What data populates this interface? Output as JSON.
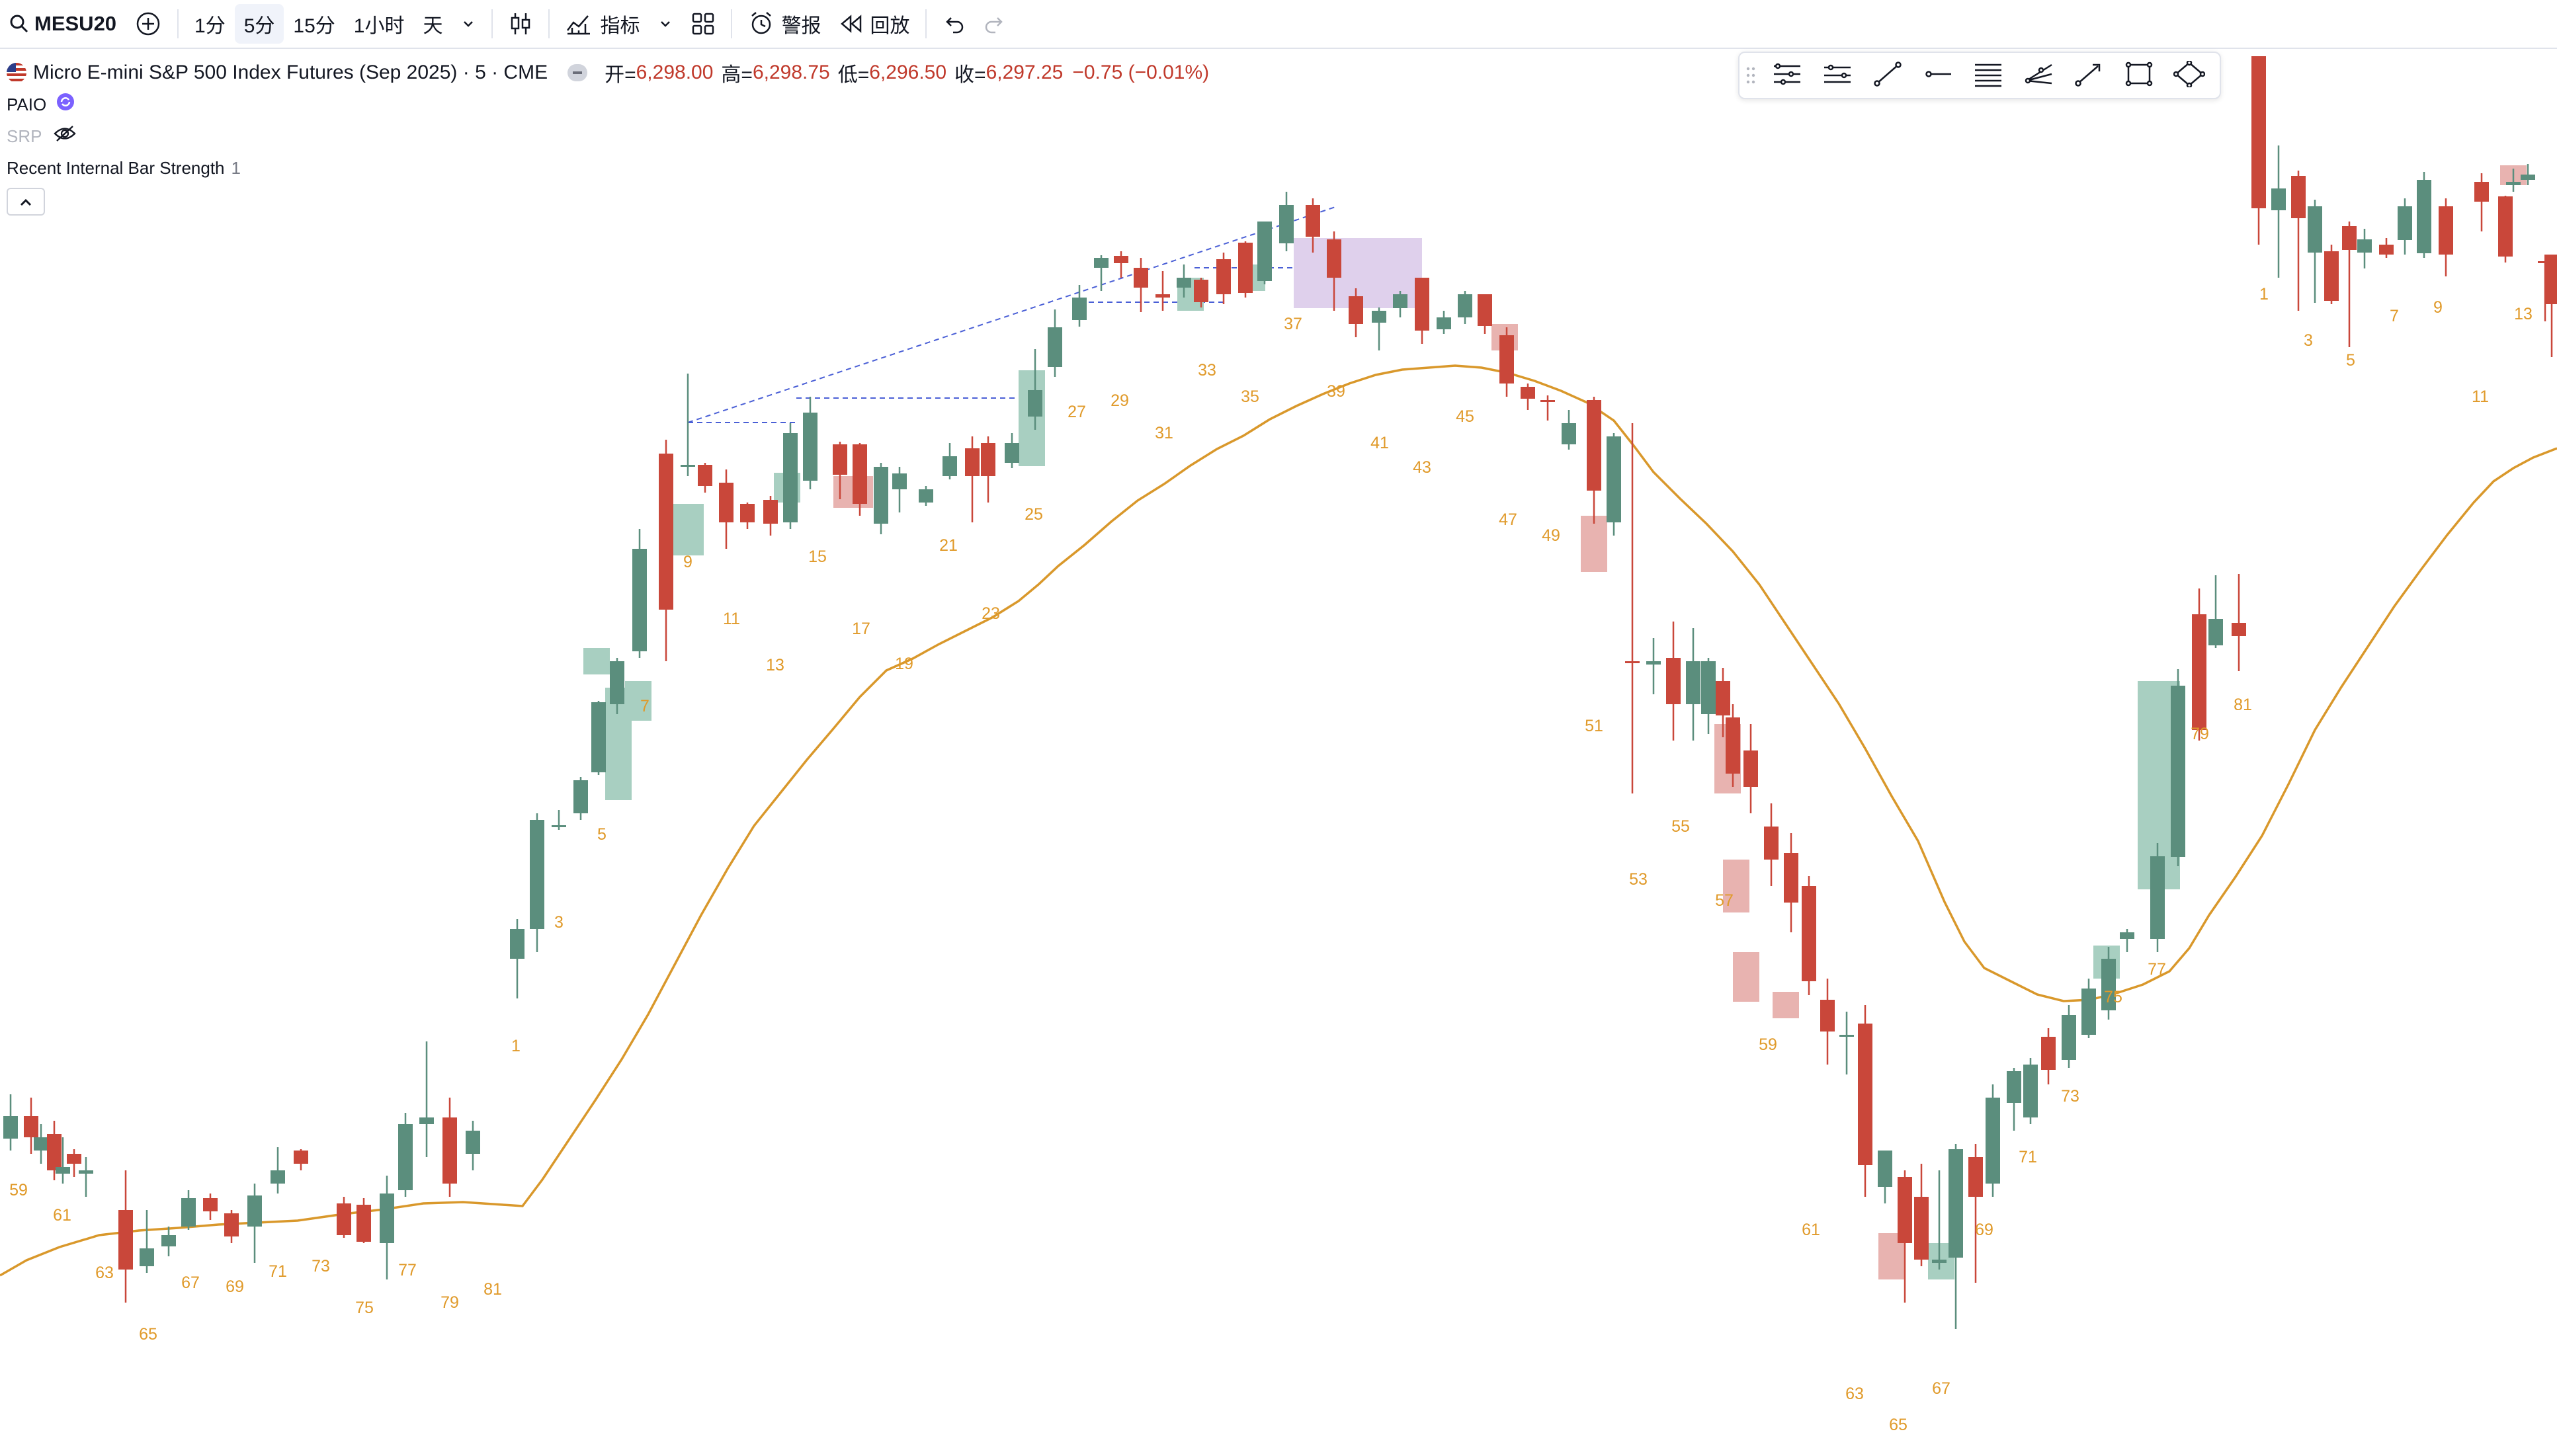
{
  "toolbar": {
    "symbol": "MESU20",
    "timeframes": [
      "1分",
      "5分",
      "15分",
      "1小时",
      "天"
    ],
    "active_timeframe": "5分",
    "indicators_label": "指标",
    "alert_label": "警报",
    "replay_label": "回放"
  },
  "legend": {
    "title": "Micro E-mini S&P 500 Index Futures (Sep 2025) · 5 · CME",
    "open_label": "开=",
    "open_value": "6,298.00",
    "high_label": "高=",
    "high_value": "6,298.75",
    "low_label": "低=",
    "low_value": "6,296.50",
    "close_label": "收=",
    "close_value": "6,297.25",
    "change": "−0.75 (−0.01%)",
    "indicators": [
      {
        "name": "PAIO",
        "value": ""
      },
      {
        "name": "SRP",
        "value": ""
      },
      {
        "name": "Recent Internal Bar Strength",
        "value": "1"
      }
    ]
  },
  "chart_data": {
    "type": "candlestick",
    "colors": {
      "up": "#5b8e7d",
      "down": "#c9473a",
      "up_fill": "#a8cfc1",
      "down_fill": "#e8b3b0",
      "ma": "#d9982b",
      "zone": "#dccbea",
      "trend": "#4a5fd6"
    },
    "bar_labels": [
      {
        "text": "59"
      },
      {
        "text": "61"
      },
      {
        "text": "63"
      },
      {
        "text": "65"
      },
      {
        "text": "67"
      },
      {
        "text": "69"
      },
      {
        "text": "71"
      },
      {
        "text": "73"
      },
      {
        "text": "75"
      },
      {
        "text": "77"
      },
      {
        "text": "79"
      },
      {
        "text": "81"
      },
      {
        "text": "1"
      },
      {
        "text": "3"
      },
      {
        "text": "5"
      },
      {
        "text": "7"
      },
      {
        "text": "9"
      },
      {
        "text": "11"
      },
      {
        "text": "13"
      },
      {
        "text": "15"
      },
      {
        "text": "17"
      },
      {
        "text": "19"
      },
      {
        "text": "21"
      },
      {
        "text": "23"
      },
      {
        "text": "25"
      },
      {
        "text": "27"
      },
      {
        "text": "29"
      },
      {
        "text": "31"
      },
      {
        "text": "33"
      },
      {
        "text": "35"
      },
      {
        "text": "37"
      },
      {
        "text": "39"
      },
      {
        "text": "41"
      },
      {
        "text": "43"
      },
      {
        "text": "45"
      },
      {
        "text": "47"
      },
      {
        "text": "49"
      },
      {
        "text": "51"
      },
      {
        "text": "53"
      },
      {
        "text": "55"
      },
      {
        "text": "57"
      },
      {
        "text": "59"
      },
      {
        "text": "61"
      },
      {
        "text": "63"
      },
      {
        "text": "65"
      },
      {
        "text": "67"
      },
      {
        "text": "69"
      },
      {
        "text": "71"
      },
      {
        "text": "73"
      },
      {
        "text": "75"
      },
      {
        "text": "77"
      },
      {
        "text": "79"
      },
      {
        "text": "81"
      },
      {
        "text": "1"
      },
      {
        "text": "3"
      },
      {
        "text": "5"
      },
      {
        "text": "7"
      },
      {
        "text": "9"
      },
      {
        "text": "11"
      },
      {
        "text": "13"
      }
    ]
  }
}
